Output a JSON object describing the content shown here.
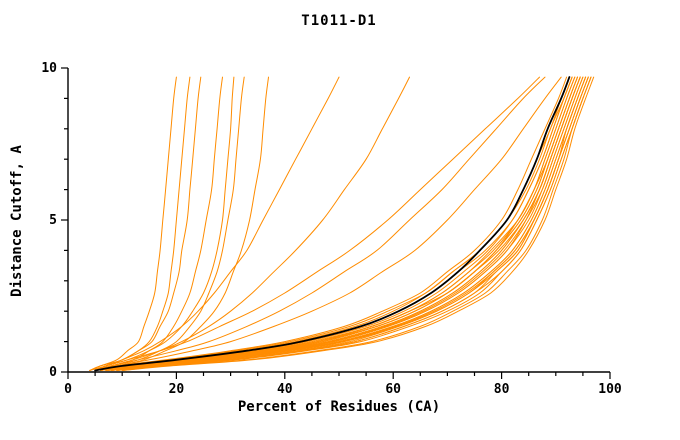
{
  "title": "T1011-D1",
  "colors": {
    "model_line": "#ff8c00",
    "reference_line": "#000000",
    "axis": "#000000",
    "background": "#ffffff"
  },
  "chart_data": {
    "type": "line",
    "title": "T1011-D1",
    "xlabel": "Percent of Residues (CA)",
    "ylabel": "Distance Cutoff, A",
    "xlim": [
      0,
      100
    ],
    "ylim": [
      0,
      10
    ],
    "x_major_ticks": [
      0,
      20,
      40,
      60,
      80,
      100
    ],
    "x_minor_step": 5,
    "y_major_ticks": [
      0,
      5,
      10
    ],
    "y_minor_step": 1,
    "grid": false,
    "legend_position": "none",
    "y_levels": [
      0.05,
      0.2,
      0.4,
      0.7,
      1.0,
      1.5,
      2.0,
      2.6,
      3.3,
      4.0,
      5.0,
      6.0,
      7.0,
      8.0,
      9.0,
      9.7
    ],
    "reference_series": {
      "name": "reference-model",
      "color": "#000000",
      "x_at_levels": [
        5,
        10,
        20,
        33,
        43,
        54,
        61,
        67,
        72,
        76,
        81,
        84,
        86.5,
        88.5,
        91,
        92.5
      ]
    },
    "series": [
      {
        "name": "model-01",
        "x_at_levels": [
          6,
          11,
          22,
          35,
          45,
          56,
          63,
          69,
          74,
          78,
          83,
          86,
          88,
          90,
          92,
          93.5
        ]
      },
      {
        "name": "model-02",
        "x_at_levels": [
          7,
          13,
          25,
          38,
          48,
          58,
          65,
          71,
          76,
          80,
          84,
          87,
          89,
          91,
          93,
          94.5
        ]
      },
      {
        "name": "model-03",
        "x_at_levels": [
          5,
          10,
          20,
          32,
          42,
          53,
          60,
          66,
          71,
          76,
          81,
          84.5,
          87,
          89,
          91.5,
          93
        ]
      },
      {
        "name": "model-04",
        "x_at_levels": [
          8,
          14,
          27,
          40,
          50,
          60,
          67,
          73,
          78,
          82,
          85.5,
          88,
          90,
          92,
          94,
          95.5
        ]
      },
      {
        "name": "model-05",
        "x_at_levels": [
          6,
          12,
          24,
          37,
          47,
          57,
          64,
          70,
          75,
          79,
          83.5,
          86.5,
          88.5,
          90.5,
          92.5,
          94
        ]
      },
      {
        "name": "model-06",
        "x_at_levels": [
          9,
          16,
          30,
          43,
          53,
          62,
          69,
          75,
          79,
          83,
          86,
          88.5,
          90.5,
          92.5,
          94.5,
          96
        ]
      },
      {
        "name": "model-07",
        "x_at_levels": [
          5,
          9,
          18,
          30,
          40,
          51,
          58,
          65,
          70,
          75,
          80,
          83,
          85.5,
          88,
          90.5,
          92
        ]
      },
      {
        "name": "model-08",
        "x_at_levels": [
          7,
          13,
          26,
          39,
          49,
          59,
          66,
          72,
          77,
          81,
          84.5,
          87,
          89,
          91,
          93,
          94.5
        ]
      },
      {
        "name": "model-09",
        "x_at_levels": [
          10,
          18,
          33,
          46,
          56,
          65,
          71,
          77,
          81,
          84.5,
          87.5,
          89.5,
          91.5,
          93,
          95,
          96.5
        ]
      },
      {
        "name": "model-10",
        "x_at_levels": [
          6,
          11,
          23,
          36,
          46,
          56,
          63,
          69,
          74,
          78.5,
          83,
          86,
          88,
          90,
          92,
          93.5
        ]
      },
      {
        "name": "model-11",
        "x_at_levels": [
          8,
          15,
          28,
          41,
          51,
          61,
          68,
          74,
          78.5,
          82.5,
          86,
          88.5,
          90.5,
          92,
          94,
          95.5
        ]
      },
      {
        "name": "model-12",
        "x_at_levels": [
          5,
          10,
          21,
          34,
          44,
          55,
          62,
          68,
          73,
          77.5,
          82,
          85,
          87.5,
          89.5,
          91.5,
          93
        ]
      },
      {
        "name": "model-13",
        "x_at_levels": [
          7,
          12,
          25,
          38,
          48,
          58,
          65,
          71,
          76,
          80,
          84,
          87,
          89,
          91,
          93,
          94.5
        ]
      },
      {
        "name": "model-14",
        "x_at_levels": [
          9,
          17,
          31,
          44,
          54,
          63,
          70,
          76,
          80,
          83.5,
          86.5,
          89,
          91,
          93,
          95,
          96.5
        ]
      },
      {
        "name": "model-15",
        "x_at_levels": [
          6,
          11,
          22,
          35,
          46,
          57,
          64,
          70,
          75,
          79,
          83,
          86,
          88.5,
          90.5,
          92.5,
          94
        ]
      },
      {
        "name": "model-16",
        "x_at_levels": [
          8,
          14.5,
          27.5,
          40.5,
          50.5,
          60.5,
          67.5,
          73.5,
          78.5,
          82.5,
          86,
          88.5,
          90.5,
          92.5,
          94.5,
          96
        ]
      },
      {
        "name": "model-17",
        "x_at_levels": [
          5,
          9,
          19,
          31,
          41,
          52,
          59,
          66,
          71,
          76,
          81,
          84,
          86.5,
          89,
          91,
          92.5
        ]
      },
      {
        "name": "model-18",
        "x_at_levels": [
          7,
          13,
          26,
          39,
          49,
          59,
          66,
          72,
          77,
          81,
          85,
          87.5,
          89.5,
          91.5,
          93.5,
          95
        ]
      },
      {
        "name": "model-19",
        "x_at_levels": [
          10,
          19,
          34,
          47,
          57,
          66,
          72,
          78,
          82,
          85,
          88,
          90,
          92,
          93.5,
          95.5,
          97
        ]
      },
      {
        "name": "model-20",
        "x_at_levels": [
          6,
          12,
          24,
          37,
          47,
          57,
          64,
          70,
          75,
          79.5,
          84,
          87,
          89,
          91,
          93,
          94.5
        ]
      },
      {
        "name": "model-21",
        "x_at_levels": [
          8,
          15,
          29,
          42,
          52,
          61,
          68,
          74,
          79,
          83,
          86,
          88.5,
          90.5,
          92.5,
          94.5,
          96
        ]
      },
      {
        "name": "model-22",
        "x_at_levels": [
          5,
          10,
          20,
          33,
          43,
          54,
          61,
          67,
          72,
          77,
          82,
          85,
          87.5,
          89.5,
          91.5,
          93
        ]
      },
      {
        "name": "model-23",
        "x_at_levels": [
          7,
          14,
          27,
          40,
          50,
          60,
          67,
          73,
          78,
          82,
          85.5,
          88,
          90,
          92,
          94,
          95.5
        ]
      },
      {
        "name": "model-24",
        "x_at_levels": [
          6,
          11,
          23,
          36,
          46,
          56,
          63,
          70,
          75,
          79,
          83.5,
          86.5,
          88.5,
          90.5,
          92.5,
          94
        ]
      },
      {
        "name": "model-25",
        "x_at_levels": [
          9,
          16,
          30,
          43,
          53,
          62,
          69,
          75,
          80,
          83.5,
          86.5,
          89,
          91,
          93,
          95,
          96.5
        ]
      },
      {
        "name": "model-26",
        "x_at_levels": [
          7.5,
          13.5,
          25.5,
          38.5,
          48.5,
          58.5,
          65.5,
          71.5,
          76.5,
          80.5,
          84.5,
          87.5,
          89.5,
          91.5,
          93.5,
          95
        ]
      },
      {
        "name": "model-27",
        "x_at_levels": [
          5,
          8,
          13,
          20,
          26,
          33,
          39,
          45,
          51,
          57,
          63,
          69,
          74,
          79,
          84,
          88
        ]
      },
      {
        "name": "model-28",
        "x_at_levels": [
          6,
          9,
          15,
          23,
          30,
          38,
          45,
          52,
          58,
          64,
          70,
          75,
          80,
          84,
          88,
          91
        ]
      },
      {
        "name": "model-29",
        "x_at_levels": [
          4,
          7,
          11,
          17,
          22,
          28,
          34,
          40,
          46,
          52,
          59,
          65,
          71,
          77,
          83,
          87
        ]
      },
      {
        "name": "model-30",
        "x_at_levels": [
          5,
          8,
          12,
          17,
          21,
          26,
          30,
          34,
          38,
          42,
          47,
          51,
          55,
          58,
          61,
          63
        ]
      },
      {
        "name": "model-31",
        "x_at_levels": [
          5,
          7,
          10,
          14,
          17,
          21,
          24,
          27,
          30,
          33,
          36,
          39,
          42,
          45,
          48,
          50
        ]
      },
      {
        "name": "model-32",
        "x_at_levels": [
          4,
          6,
          9,
          11,
          13,
          14,
          15,
          16,
          16.5,
          17,
          17.5,
          18,
          18.5,
          19,
          19.5,
          20
        ]
      },
      {
        "name": "model-33",
        "x_at_levels": [
          5,
          7,
          10,
          13,
          15,
          16.5,
          17.5,
          18.5,
          19,
          19.5,
          20,
          20.5,
          21,
          21.5,
          22,
          22.5
        ]
      },
      {
        "name": "model-34",
        "x_at_levels": [
          4,
          6,
          10,
          13,
          15.5,
          17,
          18.5,
          19.5,
          20.5,
          21,
          22,
          22.5,
          23,
          23.5,
          24,
          24.5
        ]
      },
      {
        "name": "model-35",
        "x_at_levels": [
          6,
          8,
          12,
          15,
          17.5,
          19.5,
          21,
          22.5,
          23.5,
          24.5,
          25.5,
          26.5,
          27,
          27.5,
          28,
          28.5
        ]
      },
      {
        "name": "model-36",
        "x_at_levels": [
          5,
          8,
          13,
          17,
          20,
          22.5,
          24.5,
          26,
          27.5,
          28.5,
          29.5,
          30.5,
          31,
          31.5,
          32,
          32.5
        ]
      },
      {
        "name": "model-37",
        "x_at_levels": [
          6,
          9,
          14,
          18,
          21.5,
          24.5,
          27,
          29,
          30.5,
          32,
          33.5,
          34.5,
          35.5,
          36,
          36.5,
          37
        ]
      },
      {
        "name": "model-38",
        "x_at_levels": [
          5,
          7,
          11,
          15,
          18,
          21,
          23,
          25,
          26.5,
          27.5,
          28.5,
          29,
          29.5,
          30,
          30.3,
          30.6
        ]
      }
    ]
  }
}
